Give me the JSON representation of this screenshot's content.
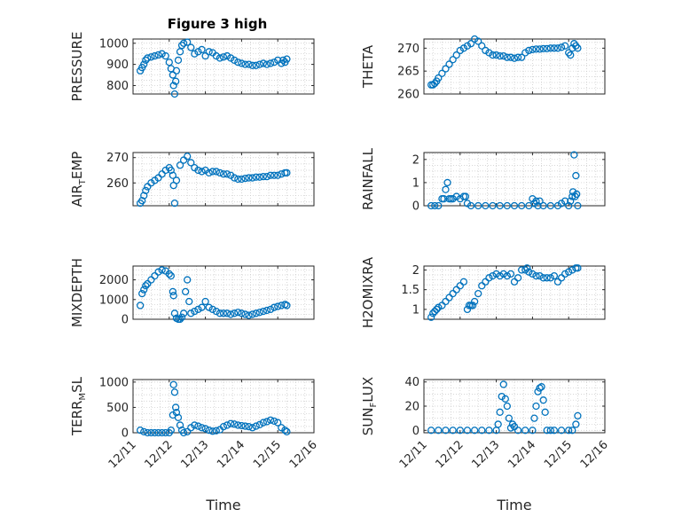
{
  "figure_title": "Figure 3 high",
  "chart_data": [
    {
      "type": "scatter",
      "ylabel": "PRESSURE",
      "ylim": [
        760,
        1020
      ],
      "yticks": [
        800,
        900,
        1000
      ],
      "x": [
        11.2,
        11.25,
        11.3,
        11.35,
        11.4,
        11.5,
        11.6,
        11.7,
        11.8,
        11.9,
        12.0,
        12.05,
        12.1,
        12.12,
        12.15,
        12.18,
        12.2,
        12.25,
        12.3,
        12.35,
        12.4,
        12.5,
        12.6,
        12.7,
        12.8,
        12.9,
        13.0,
        13.1,
        13.2,
        13.3,
        13.4,
        13.5,
        13.6,
        13.7,
        13.8,
        13.9,
        14.0,
        14.1,
        14.2,
        14.3,
        14.4,
        14.5,
        14.6,
        14.7,
        14.8,
        14.9,
        15.0,
        15.1,
        15.15,
        15.2,
        15.25
      ],
      "y": [
        870,
        885,
        900,
        920,
        930,
        935,
        940,
        945,
        950,
        940,
        910,
        880,
        850,
        800,
        760,
        820,
        870,
        920,
        960,
        990,
        1000,
        1005,
        980,
        950,
        960,
        970,
        940,
        960,
        955,
        940,
        930,
        935,
        940,
        930,
        920,
        910,
        905,
        900,
        900,
        895,
        895,
        900,
        905,
        900,
        905,
        910,
        920,
        905,
        920,
        910,
        925
      ]
    },
    {
      "type": "scatter",
      "ylabel": "THETA",
      "ylim": [
        260,
        272
      ],
      "yticks": [
        260,
        265,
        270
      ],
      "x": [
        11.2,
        11.25,
        11.3,
        11.35,
        11.4,
        11.5,
        11.6,
        11.7,
        11.8,
        11.9,
        12.0,
        12.1,
        12.2,
        12.3,
        12.4,
        12.5,
        12.6,
        12.7,
        12.8,
        12.9,
        13.0,
        13.1,
        13.2,
        13.3,
        13.4,
        13.5,
        13.6,
        13.7,
        13.8,
        13.9,
        14.0,
        14.1,
        14.2,
        14.3,
        14.4,
        14.5,
        14.6,
        14.7,
        14.8,
        14.9,
        15.0,
        15.05,
        15.1,
        15.15,
        15.2,
        15.25
      ],
      "y": [
        262,
        262,
        262.3,
        262.8,
        263.5,
        264.5,
        265.5,
        266.5,
        267.5,
        268.5,
        269.5,
        270,
        270.5,
        271,
        272,
        271.5,
        270.5,
        269.5,
        269,
        268.5,
        268.5,
        268.3,
        268.3,
        268,
        268,
        267.8,
        268,
        268,
        269,
        269.5,
        269.7,
        269.8,
        269.8,
        269.9,
        269.9,
        270,
        270,
        270,
        270.2,
        270.5,
        269,
        268.5,
        270,
        271,
        270.5,
        270
      ]
    },
    {
      "type": "scatter",
      "ylabel": "AIR_TEMP",
      "ylim": [
        251,
        272
      ],
      "yticks": [
        260,
        270
      ],
      "x": [
        11.2,
        11.25,
        11.3,
        11.35,
        11.4,
        11.5,
        11.6,
        11.7,
        11.8,
        11.9,
        12.0,
        12.05,
        12.1,
        12.12,
        12.15,
        12.2,
        12.3,
        12.4,
        12.5,
        12.6,
        12.7,
        12.8,
        12.9,
        13.0,
        13.1,
        13.2,
        13.3,
        13.4,
        13.5,
        13.6,
        13.7,
        13.8,
        13.9,
        14.0,
        14.1,
        14.2,
        14.3,
        14.4,
        14.5,
        14.6,
        14.7,
        14.8,
        14.9,
        15.0,
        15.1,
        15.2,
        15.25
      ],
      "y": [
        252,
        253,
        255,
        257,
        258.5,
        260,
        261,
        262,
        263.5,
        265,
        266,
        265,
        263,
        259,
        252,
        261,
        267,
        269,
        270.5,
        268,
        266,
        265,
        264.5,
        265,
        264,
        264.5,
        264.5,
        264,
        263.5,
        263.5,
        263,
        262,
        261.5,
        261.5,
        261.8,
        262,
        262,
        262.3,
        262.3,
        262.5,
        262.5,
        263,
        263,
        263,
        263.5,
        264,
        264
      ]
    },
    {
      "type": "scatter",
      "ylabel": "RAINFALL",
      "ylim": [
        0,
        2.3
      ],
      "yticks": [
        0,
        1,
        2
      ],
      "x": [
        11.2,
        11.3,
        11.4,
        11.5,
        11.55,
        11.6,
        11.65,
        11.7,
        11.75,
        11.8,
        11.9,
        12.0,
        12.1,
        12.15,
        12.2,
        12.3,
        12.5,
        12.7,
        12.9,
        13.1,
        13.3,
        13.5,
        13.7,
        13.9,
        14.0,
        14.05,
        14.1,
        14.15,
        14.2,
        14.3,
        14.5,
        14.7,
        14.8,
        14.9,
        15.0,
        15.05,
        15.1,
        15.12,
        15.15,
        15.18,
        15.2,
        15.22,
        15.25
      ],
      "y": [
        0,
        0,
        0,
        0.3,
        0.3,
        0.7,
        1.0,
        0.3,
        0.3,
        0.3,
        0.4,
        0.3,
        0.4,
        0.4,
        0.1,
        0,
        0,
        0,
        0,
        0,
        0,
        0,
        0,
        0,
        0.3,
        0.1,
        0.2,
        0,
        0.2,
        0,
        0,
        0,
        0.1,
        0.2,
        0,
        0.2,
        0.4,
        0.6,
        2.2,
        0.4,
        1.3,
        0.5,
        0
      ]
    },
    {
      "type": "scatter",
      "ylabel": "MIXDEPTH",
      "ylim": [
        0,
        2700
      ],
      "yticks": [
        0,
        1000,
        2000
      ],
      "x": [
        11.2,
        11.25,
        11.3,
        11.35,
        11.4,
        11.5,
        11.6,
        11.7,
        11.8,
        11.9,
        12.0,
        12.05,
        12.1,
        12.12,
        12.15,
        12.2,
        12.25,
        12.3,
        12.35,
        12.4,
        12.45,
        12.5,
        12.55,
        12.6,
        12.7,
        12.8,
        12.9,
        13.0,
        13.1,
        13.2,
        13.3,
        13.4,
        13.5,
        13.6,
        13.7,
        13.8,
        13.9,
        14.0,
        14.1,
        14.2,
        14.3,
        14.4,
        14.5,
        14.6,
        14.7,
        14.8,
        14.9,
        15.0,
        15.1,
        15.2,
        15.25
      ],
      "y": [
        700,
        1300,
        1500,
        1700,
        1800,
        2000,
        2200,
        2400,
        2500,
        2450,
        2300,
        2200,
        1400,
        1200,
        300,
        50,
        0,
        0,
        100,
        300,
        1400,
        2000,
        900,
        300,
        400,
        500,
        600,
        900,
        600,
        500,
        400,
        300,
        300,
        300,
        250,
        300,
        350,
        300,
        250,
        200,
        250,
        300,
        350,
        400,
        450,
        500,
        600,
        650,
        700,
        750,
        700
      ]
    },
    {
      "type": "scatter",
      "ylabel": "H2OMIXRA",
      "ylim": [
        0.75,
        2.1
      ],
      "yticks": [
        1,
        1.5,
        2
      ],
      "x": [
        11.2,
        11.25,
        11.3,
        11.35,
        11.4,
        11.5,
        11.6,
        11.7,
        11.8,
        11.9,
        12.0,
        12.1,
        12.2,
        12.25,
        12.3,
        12.35,
        12.4,
        12.5,
        12.6,
        12.7,
        12.8,
        12.9,
        13.0,
        13.1,
        13.2,
        13.3,
        13.4,
        13.5,
        13.6,
        13.7,
        13.8,
        13.85,
        13.9,
        14.0,
        14.1,
        14.2,
        14.3,
        14.4,
        14.5,
        14.6,
        14.7,
        14.8,
        14.9,
        15.0,
        15.1,
        15.2,
        15.25
      ],
      "y": [
        0.8,
        0.9,
        0.95,
        1.0,
        1.05,
        1.1,
        1.2,
        1.3,
        1.4,
        1.5,
        1.6,
        1.7,
        1.0,
        1.1,
        1.1,
        1.1,
        1.2,
        1.4,
        1.6,
        1.7,
        1.8,
        1.85,
        1.9,
        1.85,
        1.9,
        1.85,
        1.9,
        1.7,
        1.8,
        2.0,
        2.0,
        2.05,
        1.95,
        1.9,
        1.85,
        1.85,
        1.8,
        1.8,
        1.8,
        1.85,
        1.7,
        1.8,
        1.9,
        1.95,
        2.0,
        2.05,
        2.05
      ]
    },
    {
      "type": "scatter",
      "ylabel": "TERR_MSL",
      "ylim": [
        0,
        1050
      ],
      "yticks": [
        0,
        500,
        1000
      ],
      "x": [
        11.2,
        11.3,
        11.4,
        11.5,
        11.6,
        11.7,
        11.8,
        11.9,
        12.0,
        12.05,
        12.1,
        12.12,
        12.15,
        12.18,
        12.2,
        12.25,
        12.3,
        12.35,
        12.4,
        12.5,
        12.6,
        12.7,
        12.8,
        12.9,
        13.0,
        13.1,
        13.2,
        13.3,
        13.4,
        13.5,
        13.6,
        13.7,
        13.8,
        13.9,
        14.0,
        14.1,
        14.2,
        14.3,
        14.4,
        14.5,
        14.6,
        14.7,
        14.8,
        14.9,
        15.0,
        15.1,
        15.2,
        15.25
      ],
      "y": [
        50,
        20,
        0,
        0,
        0,
        0,
        0,
        0,
        0,
        50,
        350,
        950,
        800,
        500,
        400,
        300,
        150,
        50,
        0,
        20,
        100,
        150,
        130,
        100,
        80,
        50,
        30,
        40,
        60,
        120,
        150,
        180,
        170,
        150,
        140,
        130,
        120,
        100,
        130,
        160,
        200,
        220,
        250,
        230,
        200,
        100,
        50,
        20
      ]
    },
    {
      "type": "scatter",
      "ylabel": "SUN_FLUX",
      "ylim": [
        -2,
        42
      ],
      "yticks": [
        0,
        20,
        40
      ],
      "x": [
        11.2,
        11.4,
        11.6,
        11.8,
        12.0,
        12.2,
        12.4,
        12.6,
        12.8,
        13.0,
        13.05,
        13.1,
        13.15,
        13.2,
        13.25,
        13.3,
        13.35,
        13.4,
        13.45,
        13.5,
        13.6,
        13.8,
        14.0,
        14.05,
        14.1,
        14.15,
        14.2,
        14.25,
        14.3,
        14.35,
        14.4,
        14.5,
        14.6,
        14.8,
        15.0,
        15.1,
        15.2,
        15.25
      ],
      "y": [
        0,
        0,
        0,
        0,
        0,
        0,
        0,
        0,
        0,
        0,
        5,
        15,
        28,
        38,
        26,
        20,
        10,
        2,
        5,
        3,
        0,
        0,
        0,
        10,
        20,
        32,
        35,
        36,
        25,
        15,
        0,
        0,
        0,
        0,
        0,
        0,
        5,
        12
      ]
    }
  ],
  "x_axis": {
    "xlim": [
      11,
      16
    ],
    "ticks": [
      11,
      12,
      13,
      14,
      15,
      16
    ],
    "tick_labels": [
      "12/11",
      "12/12",
      "12/13",
      "12/14",
      "12/15",
      "12/16"
    ],
    "xlabel": "Time",
    "grid": "on"
  },
  "colors": {
    "marker": "#0072BD",
    "axes": "#262626",
    "grid": "#c8c8c8"
  }
}
